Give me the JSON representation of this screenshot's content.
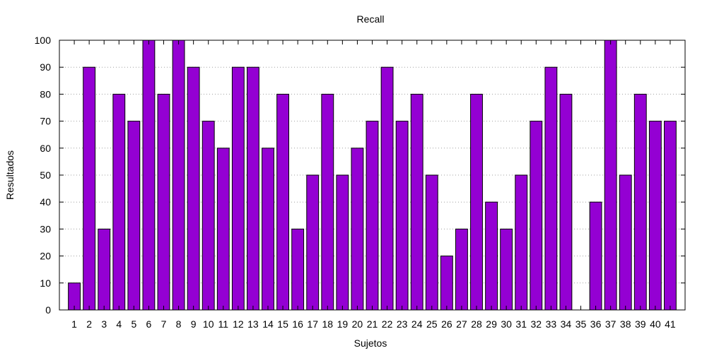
{
  "chart_data": {
    "type": "bar",
    "title": "Recall",
    "xlabel": "Sujetos",
    "ylabel": "Resultados",
    "ylim": [
      0,
      100
    ],
    "yticks": [
      0,
      10,
      20,
      30,
      40,
      50,
      60,
      70,
      80,
      90,
      100
    ],
    "grid": true,
    "categories": [
      "1",
      "2",
      "3",
      "4",
      "5",
      "6",
      "7",
      "8",
      "9",
      "10",
      "11",
      "12",
      "13",
      "14",
      "15",
      "16",
      "17",
      "18",
      "19",
      "20",
      "21",
      "22",
      "23",
      "24",
      "25",
      "26",
      "27",
      "28",
      "29",
      "30",
      "31",
      "32",
      "33",
      "34",
      "35",
      "36",
      "37",
      "38",
      "39",
      "40",
      "41"
    ],
    "values": [
      10,
      90,
      30,
      80,
      70,
      100,
      80,
      100,
      90,
      70,
      60,
      90,
      90,
      60,
      80,
      30,
      50,
      80,
      50,
      60,
      70,
      90,
      70,
      80,
      50,
      20,
      30,
      80,
      40,
      30,
      50,
      70,
      90,
      80,
      0,
      40,
      100,
      50,
      80,
      70,
      70
    ],
    "colors": {
      "bar_fill": "#9400d3",
      "bar_stroke": "#000000",
      "grid": "#a0a0a0",
      "axis": "#000000"
    }
  }
}
